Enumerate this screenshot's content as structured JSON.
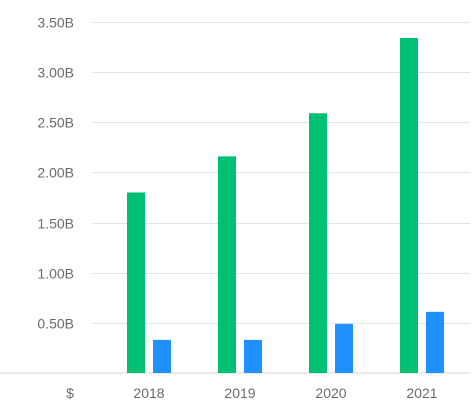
{
  "chart_data": {
    "type": "bar",
    "categories": [
      "2018",
      "2019",
      "2020",
      "2021"
    ],
    "series": [
      {
        "values": [
          1.8,
          2.16,
          2.59,
          3.34
        ],
        "color": "#00c073"
      },
      {
        "values": [
          0.33,
          0.33,
          0.49,
          0.61
        ],
        "color": "#1e90ff"
      }
    ],
    "ylim": [
      0,
      3.5
    ],
    "y_ticks": [
      0.5,
      1.0,
      1.5,
      2.0,
      2.5,
      3.0,
      3.5
    ],
    "y_tick_labels": [
      "0.50B",
      "1.00B",
      "1.50B",
      "2.00B",
      "2.50B",
      "3.00B",
      "3.50B"
    ],
    "y_unit_label": "$",
    "grid": true,
    "legend": "none"
  }
}
